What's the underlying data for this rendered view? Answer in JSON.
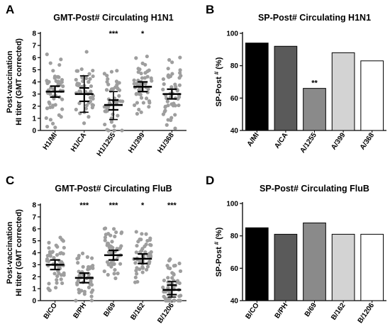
{
  "chart_data": [
    {
      "panel": "A",
      "type": "scatter",
      "title": "GMT-Post# Circulating  H1N1",
      "ylabel": "Post-vaccination HI titer (GMT corrected)",
      "ylabel_lines": [
        "Post-vaccination",
        "HI titer (GMT corrected)"
      ],
      "ylim": [
        0,
        8
      ],
      "yticks": [
        "0",
        "1",
        "2",
        "3",
        "4",
        "5",
        "6",
        "7",
        "8"
      ],
      "categories": [
        "H1/MI",
        "H1/CA",
        "H1/1255",
        "H1/399",
        "H1/368"
      ],
      "means": [
        3.2,
        3.0,
        2.1,
        3.6,
        3.0
      ],
      "ci": [
        [
          2.75,
          3.65
        ],
        [
          2.4,
          3.5
        ],
        [
          1.7,
          2.5
        ],
        [
          3.2,
          4.0
        ],
        [
          2.6,
          3.4
        ]
      ],
      "sd": [
        null,
        [
          1.5,
          4.5
        ],
        [
          0.9,
          3.2
        ],
        [
          null
        ],
        null
      ],
      "significance": [
        "",
        "",
        "***",
        "*",
        ""
      ],
      "points_per_group": 50,
      "point_range": [
        [
          0.2,
          7.0
        ],
        [
          0.6,
          6.7
        ],
        [
          0.0,
          6.7
        ],
        [
          0.6,
          7.2
        ],
        [
          0.1,
          7.1
        ]
      ],
      "point_color": "#9e9e9e"
    },
    {
      "panel": "B",
      "type": "bar",
      "title": "SP-Post# Circulating H1N1",
      "ylabel": "SP-Post # (%)",
      "ylim": [
        40,
        100
      ],
      "yticks": [
        "40",
        "60",
        "80",
        "100"
      ],
      "categories": [
        "A/MI",
        "A/CA",
        "A/1255",
        "A/399",
        "A/368"
      ],
      "values": [
        94,
        92,
        66,
        88,
        83
      ],
      "colors": [
        "#000000",
        "#5a5a5a",
        "#8a8a8a",
        "#d3d3d3",
        "#ffffff"
      ],
      "significance": [
        "",
        "",
        "**",
        "",
        ""
      ]
    },
    {
      "panel": "C",
      "type": "scatter",
      "title": "GMT-Post# Circulating FluB",
      "ylabel": "Post-vaccination HI titer (GMT corrected)",
      "ylabel_lines": [
        "Post-vaccination",
        "HI titer (GMT corrected)"
      ],
      "ylim": [
        0,
        8
      ],
      "yticks": [
        "0",
        "1",
        "2",
        "3",
        "4",
        "5",
        "6",
        "7",
        "8"
      ],
      "categories": [
        "B/CO",
        "B/PH",
        "B/69",
        "B/162",
        "B/1206"
      ],
      "means": [
        3.0,
        1.9,
        3.8,
        3.5,
        0.9
      ],
      "ci": [
        [
          2.6,
          3.4
        ],
        [
          1.5,
          2.3
        ],
        [
          3.4,
          4.2
        ],
        [
          3.1,
          3.9
        ],
        [
          0.5,
          1.3
        ]
      ],
      "sd": [
        null,
        null,
        null,
        null,
        [
          0.3,
          1.6
        ]
      ],
      "significance": [
        "",
        "***",
        "***",
        "*",
        "***"
      ],
      "points_per_group": 50,
      "point_range": [
        [
          0.3,
          7.0
        ],
        [
          0.0,
          5.0
        ],
        [
          0.7,
          7.2
        ],
        [
          0.5,
          6.9
        ],
        [
          0.0,
          4.5
        ]
      ],
      "point_color": "#9e9e9e"
    },
    {
      "panel": "D",
      "type": "bar",
      "title": "SP-Post# Circulating FluB",
      "ylabel": "SP-Post # (%)",
      "ylim": [
        40,
        100
      ],
      "yticks": [
        "40",
        "60",
        "80",
        "100"
      ],
      "categories": [
        "B/CO",
        "B/PH",
        "B/69",
        "B/162",
        "B/1206"
      ],
      "values": [
        85,
        81,
        88,
        81,
        81
      ],
      "colors": [
        "#000000",
        "#5a5a5a",
        "#8a8a8a",
        "#d3d3d3",
        "#ffffff"
      ],
      "significance": [
        "",
        "",
        "",
        "",
        ""
      ]
    }
  ]
}
